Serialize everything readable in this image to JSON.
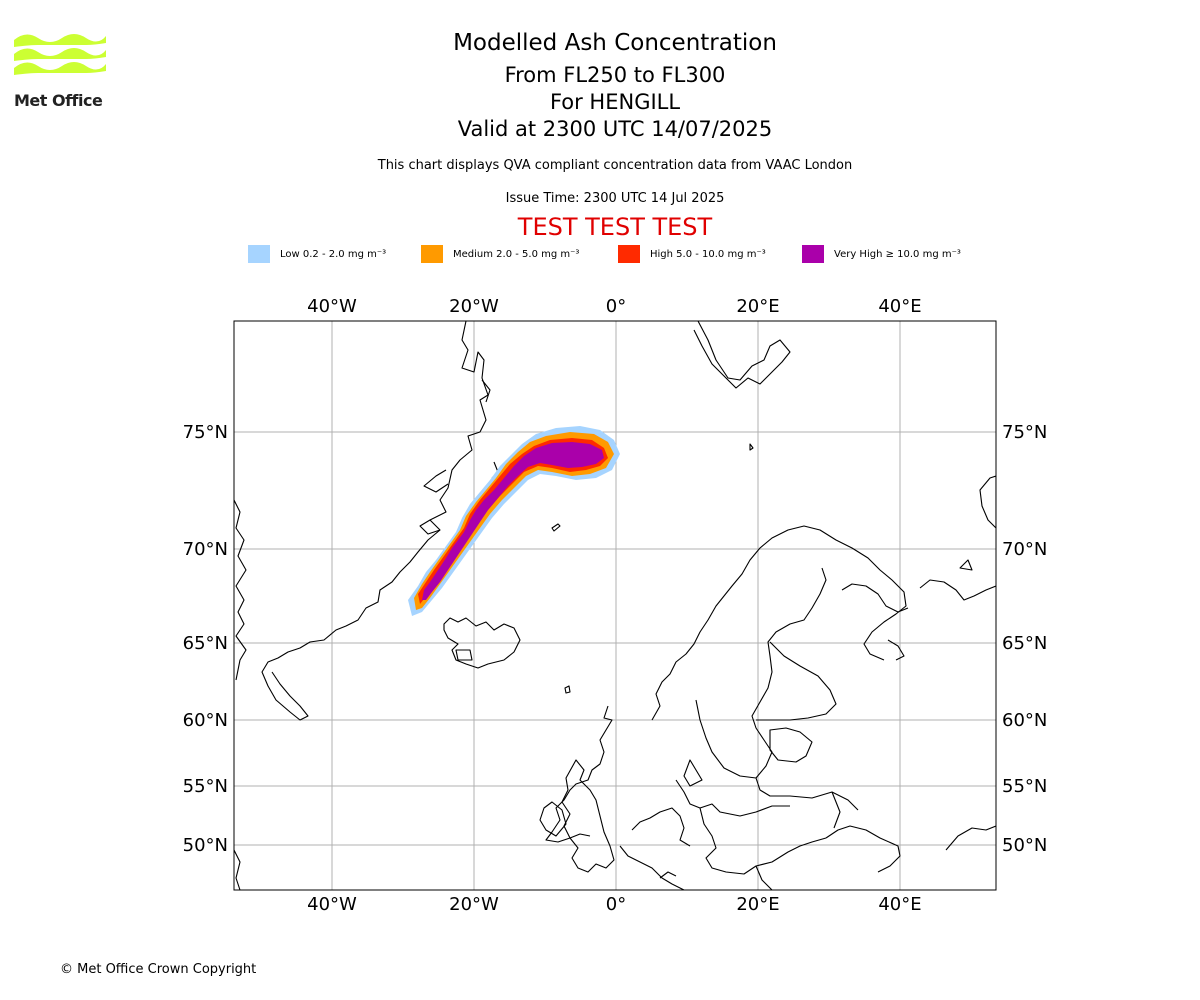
{
  "logo": {
    "text": "Met Office",
    "color": "#ccff33"
  },
  "titles": {
    "main": "Modelled Ash Concentration",
    "levels": "From FL250 to FL300",
    "volcano": "For HENGILL",
    "valid": "Valid at 2300 UTC 14/07/2025",
    "note": "This chart displays QVA compliant concentration data from VAAC London",
    "issue": "Issue Time: 2300 UTC 14 Jul 2025",
    "test": "TEST TEST TEST"
  },
  "legend": [
    {
      "label": "Low 0.2 - 2.0 mg m⁻³",
      "color": "#a6d4ff"
    },
    {
      "label": "Medium 2.0 - 5.0 mg m⁻³",
      "color": "#ff9a00"
    },
    {
      "label": "High 5.0 - 10.0 mg m⁻³",
      "color": "#ff2a00"
    },
    {
      "label": "Very High ≥ 10.0 mg m⁻³",
      "color": "#aa00aa"
    }
  ],
  "map": {
    "lon_ticks": [
      "40°W",
      "20°W",
      "0°",
      "20°E",
      "40°E"
    ],
    "lat_ticks": [
      "75°N",
      "70°N",
      "65°N",
      "60°N",
      "55°N",
      "50°N"
    ],
    "grid": true
  },
  "footer": {
    "copyright": "© Met Office Crown Copyright"
  }
}
